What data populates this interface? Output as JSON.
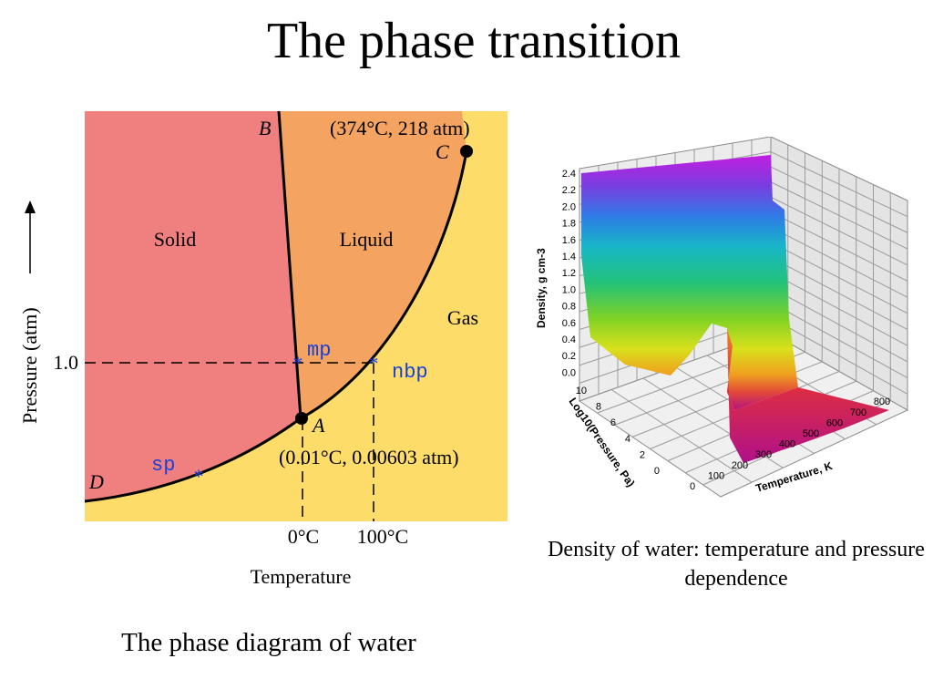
{
  "slide": {
    "title": "The phase transition",
    "caption_left": "The phase diagram of water",
    "caption_right": "Density of water: temperature and pressure dependence"
  },
  "phase_diagram": {
    "regions": {
      "solid": "Solid",
      "liquid": "Liquid",
      "gas": "Gas"
    },
    "points": {
      "A": "A",
      "B": "B",
      "C": "C",
      "D": "D",
      "critical": "(374°C, 218 atm)",
      "triple": "(0.01°C, 0.00603 atm)"
    },
    "markers": {
      "mp": "mp",
      "nbp": "nbp",
      "sp": "sp"
    },
    "axis": {
      "y_label": "Pressure (atm)",
      "y_tick": "1.0",
      "x_tick_0": "0°C",
      "x_tick_100": "100°C",
      "x_label": "Temperature"
    },
    "colors": {
      "solid": "#f08080",
      "liquid": "#f4a460",
      "gas": "#fddc6a",
      "markers": "#1a3fd6"
    }
  },
  "density_plot": {
    "z_label": "Density, g cm-3",
    "z_ticks": [
      "2.4",
      "2.2",
      "2.0",
      "1.8",
      "1.6",
      "1.4",
      "1.2",
      "1.0",
      "0.8",
      "0.6",
      "0.4",
      "0.2",
      "0.0"
    ],
    "pressure_label": "Log10(Pressure, Pa)",
    "pressure_ticks": [
      "10",
      "8",
      "6",
      "4",
      "2",
      "0"
    ],
    "temperature_label": "Temperature, K",
    "temperature_ticks": [
      "0",
      "100",
      "200",
      "300",
      "400",
      "500",
      "600",
      "700",
      "800"
    ]
  }
}
